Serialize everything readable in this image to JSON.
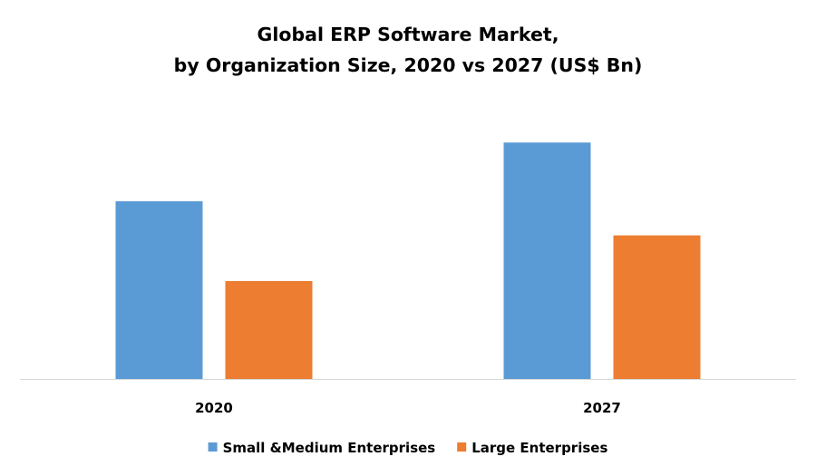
{
  "chart_data": {
    "type": "bar",
    "title_lines": [
      "Global ERP Software Market,",
      "by Organization Size, 2020 vs 2027 (US$ Bn)"
    ],
    "categories": [
      "2020",
      "2027"
    ],
    "series": [
      {
        "name": "Small &Medium Enterprises",
        "color": "#5B9BD5",
        "values": [
          24.5,
          32.6
        ]
      },
      {
        "name": "Large Enterprises",
        "color": "#ED7D31",
        "values": [
          13.5,
          19.8
        ]
      }
    ],
    "ylim": [
      0,
      36
    ],
    "grid": false,
    "legend_position": "bottom"
  }
}
